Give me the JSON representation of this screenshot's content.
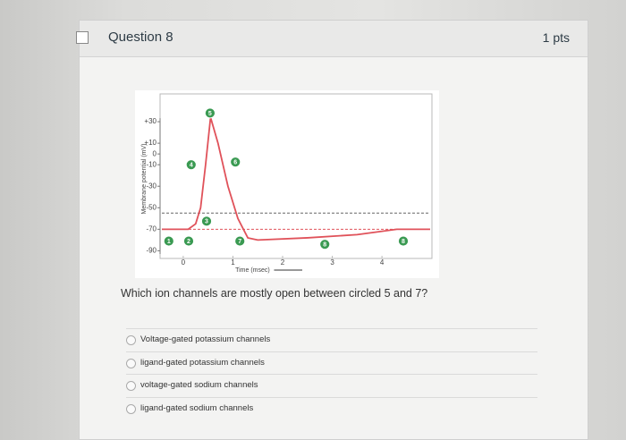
{
  "header": {
    "title": "Question 8",
    "points": "1 pts"
  },
  "chart_data": {
    "type": "line",
    "ylabel": "Membrane potential (mV)",
    "xlabel": "Time (msec)",
    "x": [
      -0.43,
      0.1,
      0.25,
      0.35,
      0.45,
      0.55,
      0.7,
      0.9,
      1.1,
      1.3,
      1.5,
      2.5,
      3.5,
      4.3,
      4.97
    ],
    "values": [
      -70,
      -70,
      -65,
      -50,
      -10,
      34,
      10,
      -30,
      -60,
      -78,
      -80,
      -78,
      -75,
      -70,
      -70
    ],
    "color": "#e0525a",
    "xlim": [
      -0.43,
      4.97
    ],
    "ylim": [
      -93,
      55
    ],
    "xticks": [
      0,
      1,
      2,
      3,
      4
    ],
    "yticks": [
      {
        "value": 30,
        "label": "+30"
      },
      {
        "value": 10,
        "label": "+10"
      },
      0,
      -10,
      -30,
      -50,
      -70,
      -90
    ],
    "hlines": [
      -55,
      -70
    ],
    "annotations": [
      {
        "text": "1",
        "x": -0.29,
        "y": -81
      },
      {
        "text": "2",
        "x": 0.11,
        "y": -81
      },
      {
        "text": "3",
        "x": 0.47,
        "y": -62.5
      },
      {
        "text": "4",
        "x": 0.16,
        "y": -10
      },
      {
        "text": "5",
        "x": 0.54,
        "y": 38
      },
      {
        "text": "6",
        "x": 1.05,
        "y": -7.5
      },
      {
        "text": "7",
        "x": 1.14,
        "y": -81
      },
      {
        "text": "8",
        "x": 2.85,
        "y": -84
      },
      {
        "text": "8",
        "x": 4.43,
        "y": -81
      }
    ]
  },
  "question": "Which ion channels are mostly open between circled 5 and 7?",
  "options": [
    "Voltage-gated potassium channels",
    "ligand-gated potassium channels",
    "voltage-gated sodium channels",
    "ligand-gated sodium channels"
  ]
}
